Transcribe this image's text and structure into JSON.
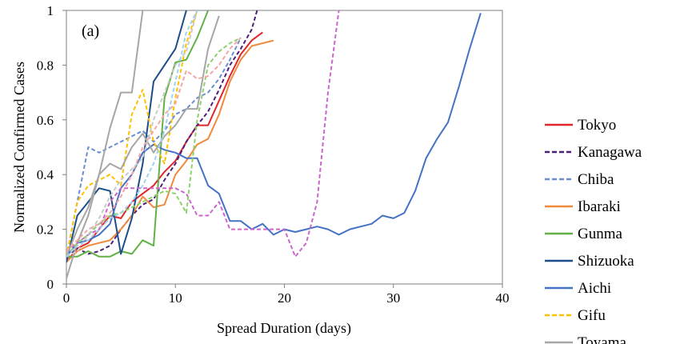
{
  "chart_data": {
    "type": "line",
    "panel_label": "(a)",
    "xlabel": "Spread Duration (days)",
    "ylabel": "Normalized Confirmed Cases",
    "xlim": [
      0,
      40
    ],
    "ylim": [
      0,
      1
    ],
    "x_ticks": [
      0,
      10,
      20,
      30,
      40
    ],
    "x_tick_labels": [
      "0",
      "10",
      "20",
      "30",
      "40"
    ],
    "y_ticks": [
      0,
      0.2,
      0.4,
      0.6,
      0.8,
      1
    ],
    "y_tick_labels": [
      "0",
      "0.2",
      "0.4",
      "0.6",
      "0.8",
      "1"
    ],
    "grid": false,
    "legend_position": "right",
    "series": [
      {
        "name": "Tokyo",
        "color": "#e0262c",
        "dash": "solid",
        "x": [
          0,
          1,
          2,
          3,
          4,
          5,
          6,
          7,
          8,
          9,
          10,
          11,
          12,
          13,
          14,
          15,
          16,
          17,
          18
        ],
        "y": [
          0.08,
          0.13,
          0.15,
          0.2,
          0.25,
          0.24,
          0.3,
          0.33,
          0.36,
          0.41,
          0.45,
          0.52,
          0.58,
          0.58,
          0.67,
          0.76,
          0.84,
          0.89,
          0.92
        ]
      },
      {
        "name": "Kanagawa",
        "color": "#4b1f7a",
        "dash": "dashed",
        "x": [
          0,
          1,
          2,
          3,
          4,
          5,
          6,
          7,
          8,
          9,
          10,
          11,
          12,
          13,
          14,
          15,
          16,
          17,
          17.5
        ],
        "y": [
          0.1,
          0.13,
          0.11,
          0.12,
          0.14,
          0.2,
          0.25,
          0.29,
          0.31,
          0.38,
          0.44,
          0.52,
          0.58,
          0.63,
          0.71,
          0.8,
          0.86,
          0.93,
          1.0
        ]
      },
      {
        "name": "Chiba",
        "color": "#6a8fd0",
        "dash": "dashed",
        "x": [
          0,
          1,
          2,
          3,
          4,
          5,
          6,
          7,
          8,
          9,
          10,
          11,
          12,
          13,
          14,
          15,
          16
        ],
        "y": [
          0.1,
          0.3,
          0.5,
          0.48,
          0.5,
          0.52,
          0.54,
          0.56,
          0.52,
          0.56,
          0.62,
          0.64,
          0.68,
          0.7,
          0.75,
          0.82,
          0.9
        ]
      },
      {
        "name": "Ibaraki",
        "color": "#f08a3c",
        "dash": "solid",
        "x": [
          0,
          1,
          2,
          3,
          4,
          5,
          6,
          7,
          8,
          9,
          10,
          11,
          12,
          13,
          14,
          15,
          16,
          17,
          18,
          19
        ],
        "y": [
          0.08,
          0.12,
          0.14,
          0.15,
          0.16,
          0.2,
          0.25,
          0.32,
          0.28,
          0.29,
          0.4,
          0.45,
          0.51,
          0.53,
          0.62,
          0.74,
          0.82,
          0.87,
          0.88,
          0.89
        ]
      },
      {
        "name": "Gunma",
        "color": "#62b046",
        "dash": "solid",
        "x": [
          0,
          1,
          2,
          3,
          4,
          5,
          6,
          7,
          8,
          9,
          10,
          11,
          12,
          13
        ],
        "y": [
          0.1,
          0.1,
          0.12,
          0.1,
          0.1,
          0.12,
          0.11,
          0.16,
          0.14,
          0.68,
          0.81,
          0.82,
          0.9,
          1.0
        ]
      },
      {
        "name": "Shizuoka",
        "color": "#1d4e89",
        "dash": "solid",
        "x": [
          0,
          1,
          2,
          3,
          4,
          5,
          6,
          7,
          8,
          9,
          10,
          11
        ],
        "y": [
          0.08,
          0.25,
          0.3,
          0.35,
          0.34,
          0.11,
          0.24,
          0.44,
          0.74,
          0.8,
          0.86,
          1.0
        ]
      },
      {
        "name": "Aichi",
        "color": "#4472c4",
        "dash": "solid",
        "x": [
          0,
          1,
          2,
          3,
          4,
          5,
          6,
          7,
          8,
          9,
          10,
          11,
          12,
          13,
          14,
          15,
          16,
          17,
          18,
          19,
          20,
          21,
          22,
          23,
          24,
          25,
          26,
          27,
          28,
          29,
          30,
          31,
          32,
          33,
          34,
          35,
          36,
          37,
          38
        ],
        "y": [
          0.1,
          0.15,
          0.16,
          0.18,
          0.22,
          0.35,
          0.4,
          0.48,
          0.51,
          0.49,
          0.48,
          0.46,
          0.46,
          0.36,
          0.33,
          0.23,
          0.23,
          0.2,
          0.22,
          0.18,
          0.2,
          0.19,
          0.2,
          0.21,
          0.2,
          0.18,
          0.2,
          0.21,
          0.22,
          0.25,
          0.24,
          0.26,
          0.34,
          0.46,
          0.53,
          0.59,
          0.72,
          0.86,
          0.99
        ]
      },
      {
        "name": "Gifu",
        "color": "#ffc000",
        "dash": "dashed",
        "x": [
          0,
          1,
          2,
          3,
          4,
          5,
          6,
          7,
          8,
          9,
          10,
          11,
          12
        ],
        "y": [
          0.1,
          0.3,
          0.36,
          0.38,
          0.4,
          0.36,
          0.62,
          0.71,
          0.52,
          0.44,
          0.68,
          0.88,
          1.0
        ]
      },
      {
        "name": "Toyama",
        "color": "#a6a6a6",
        "dash": "solid",
        "x": [
          0,
          1,
          2,
          3,
          4,
          5,
          6,
          7
        ],
        "y": [
          0.02,
          0.15,
          0.25,
          0.4,
          0.57,
          0.7,
          0.7,
          1.0
        ]
      },
      {
        "name": "",
        "color": "#a6a6a6",
        "dash": "solid",
        "x": [
          0,
          1,
          2,
          3,
          4,
          5,
          6,
          7,
          8,
          9,
          10,
          11,
          12,
          13,
          14
        ],
        "y": [
          0.1,
          0.2,
          0.28,
          0.4,
          0.44,
          0.42,
          0.5,
          0.55,
          0.48,
          0.54,
          0.58,
          0.64,
          0.64,
          0.86,
          0.98
        ]
      },
      {
        "name": "",
        "color": "#cc66cc",
        "dash": "dashed",
        "x": [
          0,
          1,
          2,
          3,
          4,
          5,
          6,
          7,
          8,
          9,
          10,
          11,
          12,
          13,
          14,
          15,
          16,
          17,
          18,
          19,
          20,
          21,
          22,
          23,
          24,
          25
        ],
        "y": [
          0.12,
          0.15,
          0.18,
          0.2,
          0.3,
          0.35,
          0.35,
          0.35,
          0.35,
          0.35,
          0.35,
          0.33,
          0.25,
          0.25,
          0.3,
          0.2,
          0.2,
          0.2,
          0.2,
          0.2,
          0.2,
          0.1,
          0.15,
          0.3,
          0.7,
          1.0
        ]
      },
      {
        "name": "",
        "color": "#8fd16a",
        "dash": "dashed",
        "x": [
          0,
          1,
          2,
          3,
          4,
          5,
          6,
          7,
          8,
          9,
          10,
          11,
          12,
          13,
          14,
          15,
          16
        ],
        "y": [
          0.1,
          0.15,
          0.18,
          0.22,
          0.25,
          0.26,
          0.28,
          0.3,
          0.32,
          0.34,
          0.33,
          0.26,
          0.6,
          0.8,
          0.85,
          0.88,
          0.9
        ]
      },
      {
        "name": "",
        "color": "#f4a6a6",
        "dash": "dashed",
        "x": [
          0,
          1,
          2,
          3,
          4,
          5,
          6,
          7,
          8,
          9,
          10,
          11,
          12,
          13,
          14,
          15,
          16
        ],
        "y": [
          0.12,
          0.16,
          0.2,
          0.22,
          0.26,
          0.32,
          0.4,
          0.5,
          0.56,
          0.62,
          0.66,
          0.78,
          0.75,
          0.76,
          0.8,
          0.86,
          0.9
        ]
      },
      {
        "name": "",
        "color": "#c9c9c9",
        "dash": "dashed",
        "x": [
          0,
          1,
          2,
          3,
          4,
          5,
          6,
          7,
          8,
          9,
          10,
          11,
          12
        ],
        "y": [
          0.1,
          0.12,
          0.18,
          0.24,
          0.32,
          0.38,
          0.42,
          0.46,
          0.6,
          0.7,
          0.8,
          0.85,
          1.0
        ]
      },
      {
        "name": "",
        "color": "#9ed3f0",
        "dash": "dashed",
        "x": [
          0,
          1,
          2,
          3,
          4,
          5,
          6,
          7,
          8,
          9,
          10,
          11,
          12
        ],
        "y": [
          0.1,
          0.14,
          0.16,
          0.2,
          0.24,
          0.26,
          0.3,
          0.36,
          0.44,
          0.56,
          0.74,
          0.92,
          1.0
        ]
      }
    ]
  }
}
